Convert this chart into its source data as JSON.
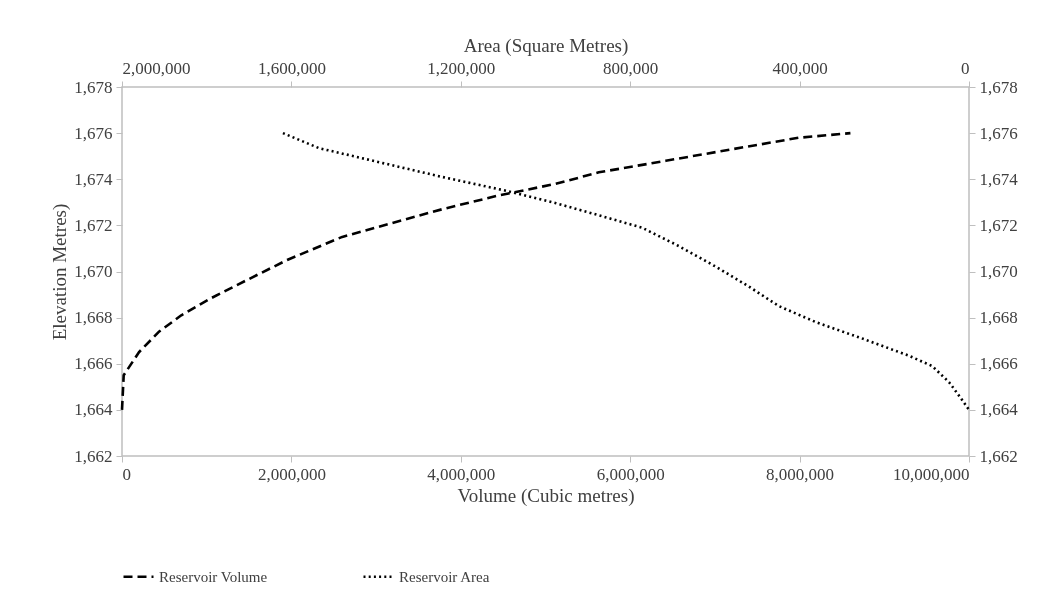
{
  "chart_data": {
    "type": "line",
    "xlabel": "Volume (Cubic metres)",
    "x2label": "Area (Square Metres)",
    "ylabel": "Elevation Metres)",
    "xlim": [
      0,
      10000000
    ],
    "xticks": [
      0,
      {
        "value": 2000000,
        "label": "2,000,000"
      },
      {
        "value": 4000000,
        "label": "4,000,000"
      },
      {
        "value": 6000000,
        "label": "6,000,000"
      },
      {
        "value": 8000000,
        "label": "8,000,000"
      },
      {
        "value": 10000000,
        "label": "10,000,000"
      }
    ],
    "x2lim": [
      2000000,
      0
    ],
    "x2ticks": [
      0,
      {
        "value": 400000,
        "label": "400,000"
      },
      {
        "value": 800000,
        "label": "800,000"
      },
      {
        "value": 1200000,
        "label": "1,200,000"
      },
      {
        "value": 1600000,
        "label": "1,600,000"
      },
      {
        "value": 2000000,
        "label": "2,000,000"
      }
    ],
    "ylim": [
      1662,
      1678
    ],
    "yticks": [
      {
        "value": 1662,
        "label": "1,662"
      },
      {
        "value": 1664,
        "label": "1,664"
      },
      {
        "value": 1666,
        "label": "1,666"
      },
      {
        "value": 1668,
        "label": "1,668"
      },
      {
        "value": 1670,
        "label": "1,670"
      },
      {
        "value": 1672,
        "label": "1,672"
      },
      {
        "value": 1674,
        "label": "1,674"
      },
      {
        "value": 1676,
        "label": "1,676"
      },
      {
        "value": 1678,
        "label": "1,678"
      }
    ],
    "y2lim": [
      1662,
      1678
    ],
    "y2ticks": [
      {
        "value": 1662,
        "label": "1,662"
      },
      {
        "value": 1664,
        "label": "1,664"
      },
      {
        "value": 1666,
        "label": "1,666"
      },
      {
        "value": 1668,
        "label": "1,668"
      },
      {
        "value": 1670,
        "label": "1,670"
      },
      {
        "value": 1672,
        "label": "1,672"
      },
      {
        "value": 1674,
        "label": "1,674"
      },
      {
        "value": 1676,
        "label": "1,676"
      },
      {
        "value": 1678,
        "label": "1,678"
      }
    ],
    "grid": false,
    "legend": "bottom",
    "series": [
      {
        "name": "Reservoir Volume",
        "color": "#000000",
        "line_style": "dashed",
        "x": [
          0,
          20000,
          200000,
          440000,
          700000,
          1030000,
          1350000,
          1950000,
          2600000,
          3190000,
          3780000,
          4450000,
          5120000,
          5630000,
          6420000,
          7200000,
          7990000,
          8600000
        ],
        "values": [
          1664,
          1665.5,
          1666.5,
          1667.4,
          1668.1,
          1668.8,
          1669.4,
          1670.5,
          1671.5,
          1672.1,
          1672.7,
          1673.3,
          1673.8,
          1674.3,
          1674.8,
          1675.3,
          1675.8,
          1676
        ]
      },
      {
        "name": "Reservoir Area",
        "color": "#000000",
        "line_style": "dotted",
        "axis": "x2",
        "x": [
          1620000,
          1535000,
          1244000,
          1093000,
          975000,
          867000,
          772000,
          685000,
          597000,
          520000,
          449000,
          361000,
          253000,
          142000,
          87000,
          47000,
          19000,
          0
        ],
        "values": [
          1676,
          1675.35,
          1674.1,
          1673.5,
          1672.96,
          1672.4,
          1671.9,
          1671.1,
          1670.2,
          1669.35,
          1668.5,
          1667.8,
          1667.1,
          1666.35,
          1665.9,
          1665.2,
          1664.5,
          1664
        ]
      }
    ]
  }
}
